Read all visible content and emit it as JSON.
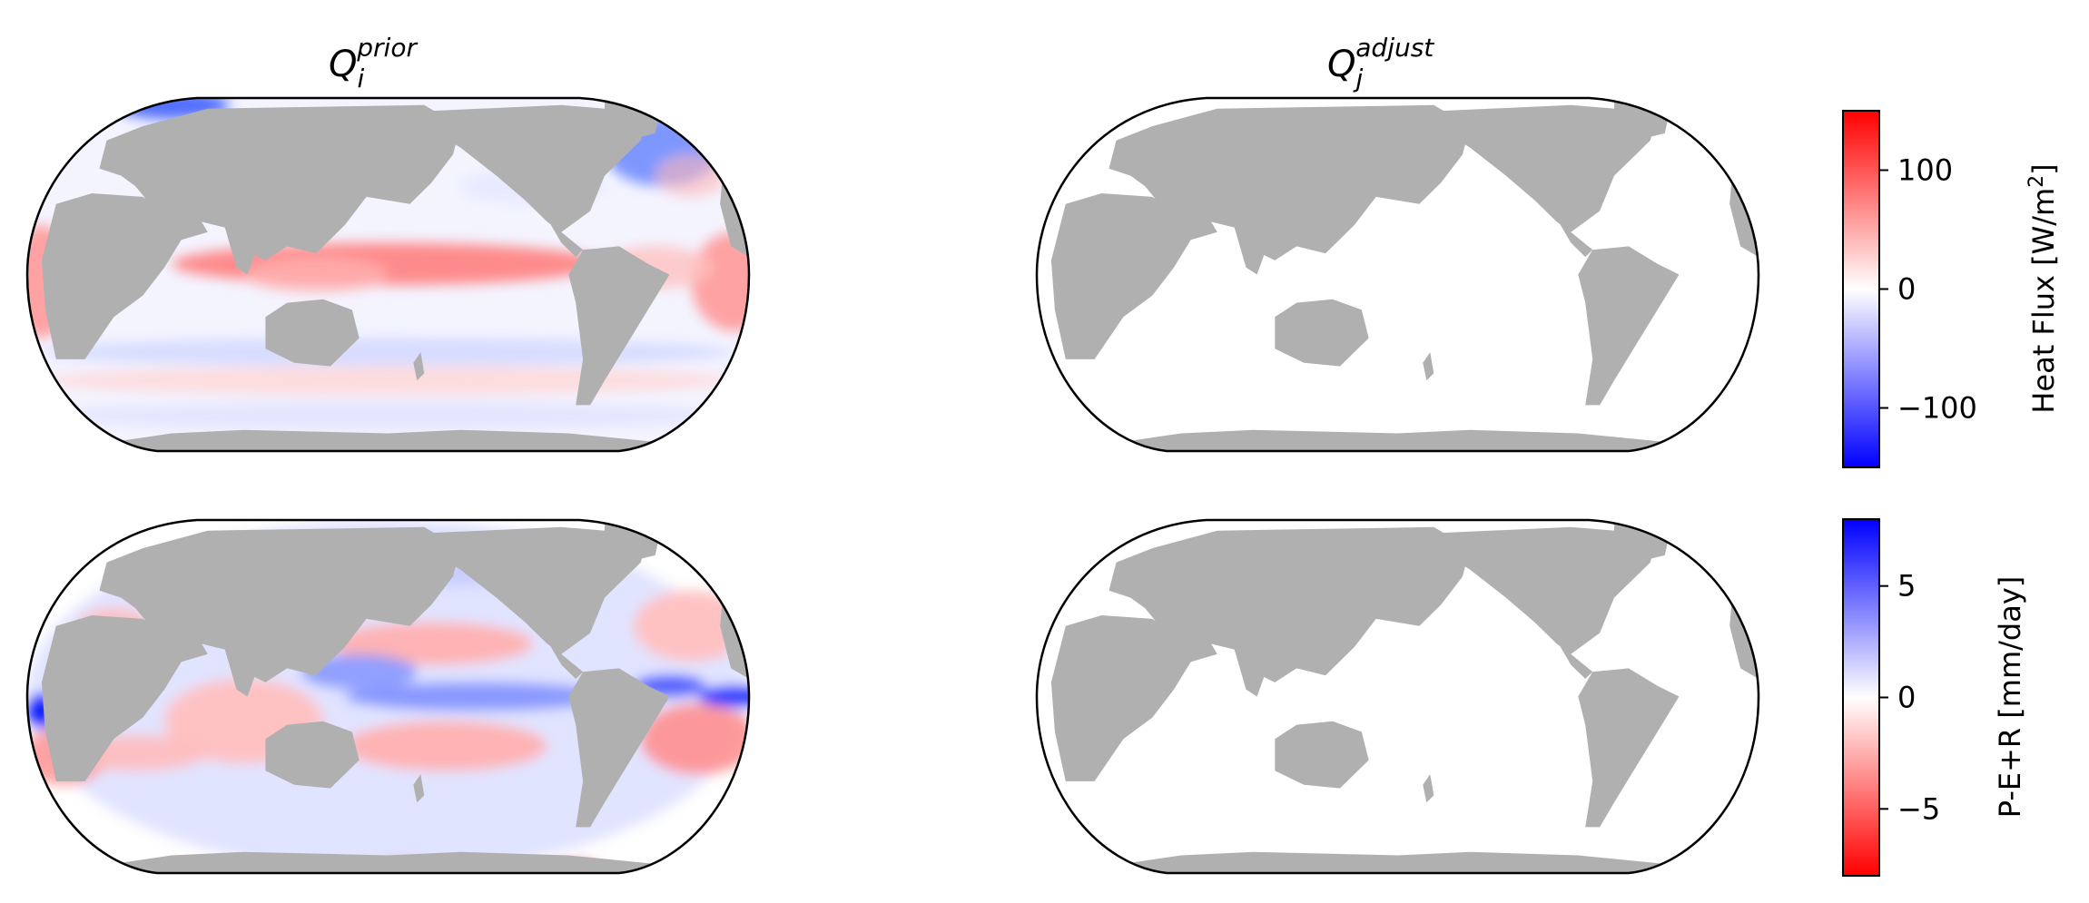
{
  "panels": [
    {
      "id": "heat-prior",
      "title_base": "Q",
      "title_sub": "i",
      "title_sup": "prior",
      "field": "heat",
      "variant": "prior"
    },
    {
      "id": "heat-adjust",
      "title_base": "Q",
      "title_sub": "j",
      "title_sup": "adjust",
      "field": "heat",
      "variant": "adjust"
    },
    {
      "id": "fw-prior",
      "title_base": "",
      "title_sub": "",
      "title_sup": "",
      "field": "freshwater",
      "variant": "prior"
    },
    {
      "id": "fw-adjust",
      "title_base": "",
      "title_sub": "",
      "title_sup": "",
      "field": "freshwater",
      "variant": "adjust"
    }
  ],
  "colorbars": [
    {
      "id": "heat",
      "label_main": "Heat Flux [W/m",
      "label_sup": "2",
      "label_end": "]",
      "vmin": -150,
      "vmax": 150,
      "ticks": [
        {
          "v": 100,
          "t": "100"
        },
        {
          "v": 0,
          "t": "0"
        },
        {
          "v": -100,
          "t": "−100"
        }
      ],
      "colors": [
        "#0000ff",
        "#ffffff",
        "#ff0000"
      ]
    },
    {
      "id": "freshwater",
      "label_main": "P-E+R [mm/day]",
      "label_sup": "",
      "label_end": "",
      "vmin": -8,
      "vmax": 8,
      "ticks": [
        {
          "v": 5,
          "t": "5"
        },
        {
          "v": 0,
          "t": "0"
        },
        {
          "v": -5,
          "t": "−5"
        }
      ],
      "colors": [
        "#ff0000",
        "#ffffff",
        "#0000ff"
      ]
    }
  ],
  "colors": {
    "land": "#b0b0b0",
    "ocean_blank": "#ffffff",
    "outline": "#000000"
  }
}
